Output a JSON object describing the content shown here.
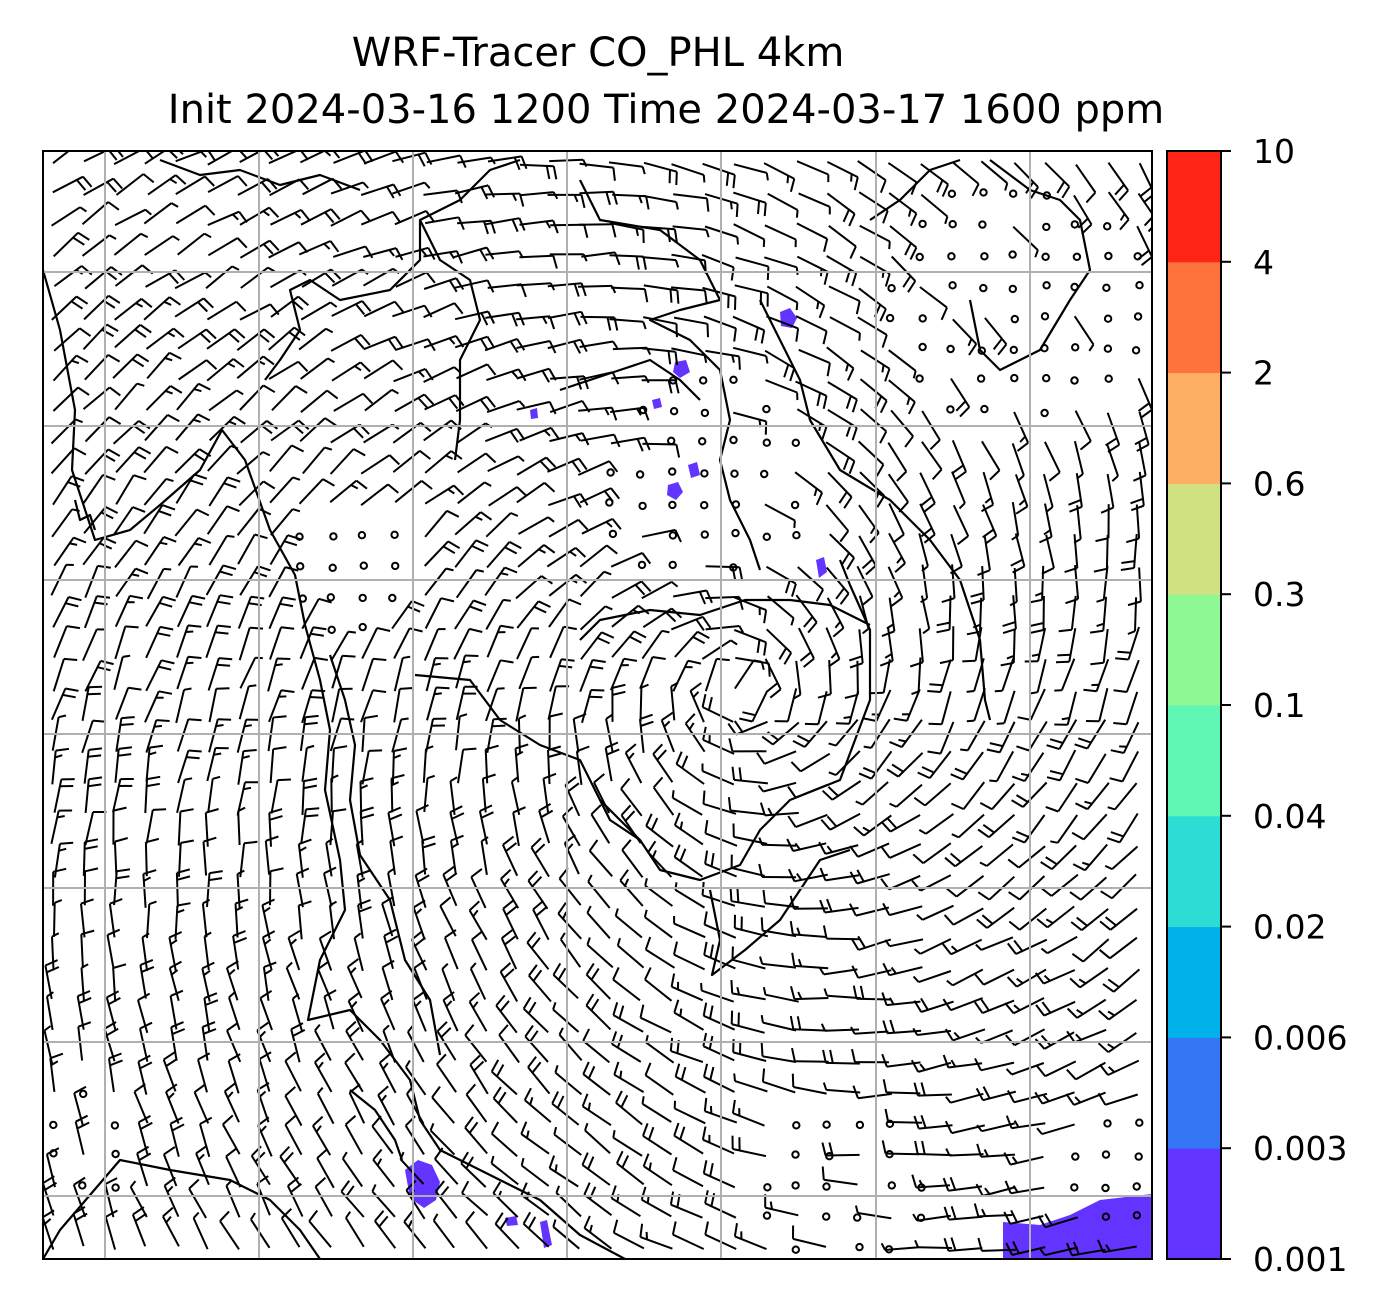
{
  "chart_data": {
    "type": "heatmap",
    "title_line1": "WRF-Tracer CO_PHL 4km",
    "title_line2": "Init 2024-03-16 1200 Time 2024-03-17 1600 ppm",
    "grid": true,
    "colorbar": {
      "placement": "right",
      "ticks": [
        "0.001",
        "0.003",
        "0.006",
        "0.02",
        "0.04",
        "0.1",
        "0.3",
        "0.6",
        "2",
        "4",
        "10"
      ],
      "colors": [
        "#6333ff",
        "#3476f4",
        "#00b1ea",
        "#2ddcd5",
        "#60f6b4",
        "#8df894",
        "#d0e181",
        "#feaf63",
        "#fe733c",
        "#ff2415"
      ]
    },
    "wind": {
      "center": [
        740,
        690
      ],
      "calm_zones": [
        {
          "region": "upper-right",
          "cx": 0.88,
          "cy": 0.14,
          "r": 0.12
        },
        {
          "region": "upper-center",
          "cx": 0.6,
          "cy": 0.3,
          "r": 0.1
        },
        {
          "region": "bottom-center",
          "cx": 0.72,
          "cy": 0.94,
          "r": 0.08
        },
        {
          "region": "bottom-right",
          "cx": 0.98,
          "cy": 0.92,
          "r": 0.06
        },
        {
          "region": "left-middle",
          "cx": 0.28,
          "cy": 0.38,
          "r": 0.06
        },
        {
          "region": "bottom-left",
          "cx": 0.04,
          "cy": 0.9,
          "r": 0.05
        }
      ]
    }
  }
}
